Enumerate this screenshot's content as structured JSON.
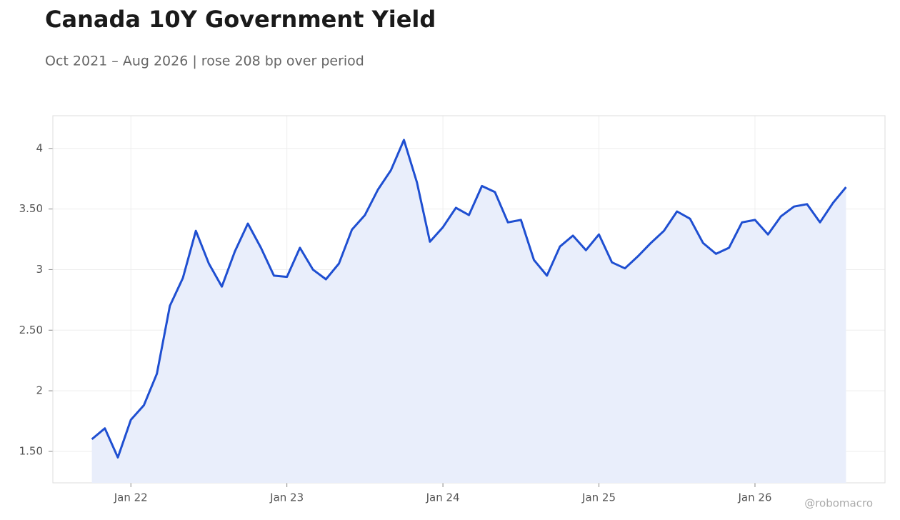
{
  "chart_data": {
    "type": "line",
    "title": "Canada 10Y Government Yield",
    "subtitle": "Oct 2021 – Aug 2026 | rose 208 bp over period",
    "watermark": "@robomacro",
    "x": [
      "2021-10",
      "2021-11",
      "2021-12",
      "2022-01",
      "2022-02",
      "2022-03",
      "2022-04",
      "2022-05",
      "2022-06",
      "2022-07",
      "2022-08",
      "2022-09",
      "2022-10",
      "2022-11",
      "2022-12",
      "2023-01",
      "2023-02",
      "2023-03",
      "2023-04",
      "2023-05",
      "2023-06",
      "2023-07",
      "2023-08",
      "2023-09",
      "2023-10",
      "2023-11",
      "2023-12",
      "2024-01",
      "2024-02",
      "2024-03",
      "2024-04",
      "2024-05",
      "2024-06",
      "2024-07",
      "2024-08",
      "2024-09",
      "2024-10",
      "2024-11",
      "2024-12",
      "2025-01",
      "2025-02",
      "2025-03",
      "2025-04",
      "2025-05",
      "2025-06",
      "2025-07",
      "2025-08",
      "2025-09",
      "2025-10",
      "2025-11",
      "2025-12",
      "2026-01",
      "2026-02",
      "2026-03",
      "2026-04",
      "2026-05",
      "2026-06",
      "2026-07",
      "2026-08"
    ],
    "series": [
      {
        "name": "Canada 10Y",
        "color": "#1f4fd1",
        "fill": "#e9eefb",
        "values": [
          1.6,
          1.69,
          1.45,
          1.76,
          1.88,
          2.14,
          2.7,
          2.93,
          3.32,
          3.05,
          2.86,
          3.15,
          3.38,
          3.18,
          2.95,
          2.94,
          3.18,
          3.0,
          2.92,
          3.05,
          3.33,
          3.45,
          3.66,
          3.82,
          4.07,
          3.72,
          3.23,
          3.35,
          3.51,
          3.45,
          3.69,
          3.64,
          3.39,
          3.41,
          3.08,
          2.95,
          3.19,
          3.28,
          3.16,
          3.29,
          3.06,
          3.01,
          3.11,
          3.22,
          3.32,
          3.48,
          3.42,
          3.22,
          3.13,
          3.18,
          3.39,
          3.41,
          3.29,
          3.44,
          3.52,
          3.54,
          3.39,
          3.55,
          3.68
        ]
      }
    ],
    "xlim": [
      "2021-07",
      "2026-11"
    ],
    "xticks": [
      {
        "value": "2022-01",
        "label": "Jan 22"
      },
      {
        "value": "2023-01",
        "label": "Jan 23"
      },
      {
        "value": "2024-01",
        "label": "Jan 24"
      },
      {
        "value": "2025-01",
        "label": "Jan 25"
      },
      {
        "value": "2026-01",
        "label": "Jan 26"
      }
    ],
    "ylim": [
      1.24,
      4.27
    ],
    "yticks": [
      {
        "value": 1.5,
        "label": "1.50"
      },
      2,
      {
        "value": 2.5,
        "label": "2.50"
      },
      3,
      {
        "value": 3.5,
        "label": "3.50"
      },
      4
    ],
    "grid": true
  }
}
